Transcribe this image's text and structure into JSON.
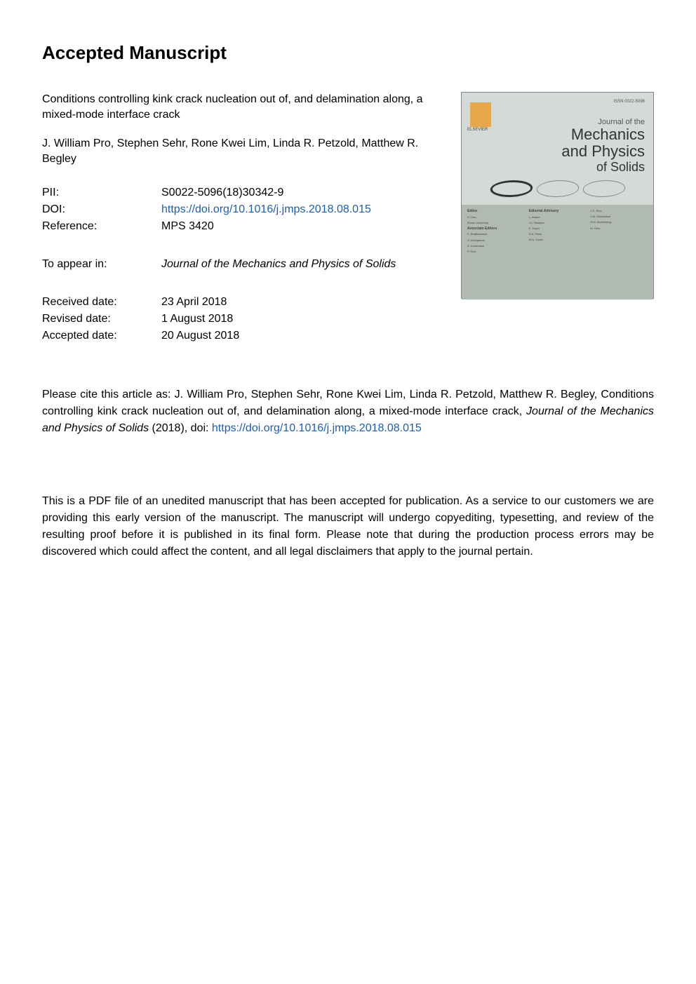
{
  "heading": "Accepted Manuscript",
  "article": {
    "title": "Conditions controlling kink crack nucleation out of, and delamination along, a mixed-mode interface crack",
    "authors": "J. William Pro, Stephen Sehr, Rone Kwei Lim, Linda R. Petzold, Matthew R. Begley"
  },
  "metadata": {
    "pii_label": "PII:",
    "pii_value": "S0022-5096(18)30342-9",
    "doi_label": "DOI:",
    "doi_value": "https://doi.org/10.1016/j.jmps.2018.08.015",
    "reference_label": "Reference:",
    "reference_value": "MPS 3420",
    "appear_label": "To appear in:",
    "appear_value": "Journal of the Mechanics and Physics of Solids",
    "received_label": "Received date:",
    "received_value": "23 April 2018",
    "revised_label": "Revised date:",
    "revised_value": "1 August 2018",
    "accepted_label": "Accepted date:",
    "accepted_value": "20 August 2018"
  },
  "citation": {
    "prefix": "Please cite this article as: J. William Pro, Stephen Sehr, Rone Kwei Lim, Linda R. Petzold, Matthew R. Begley, Conditions controlling kink crack nucleation out of, and delamination along, a mixed-mode interface crack, ",
    "journal": "Journal of the Mechanics and Physics of Solids",
    "suffix": " (2018), doi: ",
    "doi_link": "https://doi.org/10.1016/j.jmps.2018.08.015"
  },
  "disclaimer": "This is a PDF file of an unedited manuscript that has been accepted for publication. As a service to our customers we are providing this early version of the manuscript. The manuscript will undergo copyediting, typesetting, and review of the resulting proof before it is published in its final form. Please note that during the production process errors may be discovered which could affect the content, and all legal disclaimers that apply to the journal pertain.",
  "cover": {
    "elsevier_label": "ELSEVIER",
    "issn": "ISSN 0022-5096",
    "journal_of": "Journal of the",
    "mechanics": "Mechanics",
    "and_physics": "and Physics",
    "of_solids": "of Solids",
    "editor_label": "Editor",
    "editor_1": "H. Gao",
    "editor_1_affil": "Brown University",
    "assoc_label": "Associate Editors",
    "assoc_1": "K. Bhattacharya",
    "assoc_2": "V. Deshpande",
    "assoc_3": "D. Kochmann",
    "assoc_4": "P. Reis",
    "board_label": "Editorial Advisory",
    "board_1": "L. Anand",
    "board_2": "J.L. Bassani",
    "board_3": "K. Dayal",
    "board_4": "N.A. Fleck",
    "board_5": "W.A. Curtin",
    "board_6": "J.R. Rice",
    "board_7": "J.W. Hutchinson",
    "board_8": "R.M. McMeeking",
    "board_9": "M. Ortiz"
  },
  "colors": {
    "link_color": "#1a5fb4",
    "cover_bg": "#bfc8c2",
    "cover_top_bg": "#d4dad5",
    "cover_bottom_bg": "#b0bab3",
    "elsevier_orange": "#e8a848"
  }
}
